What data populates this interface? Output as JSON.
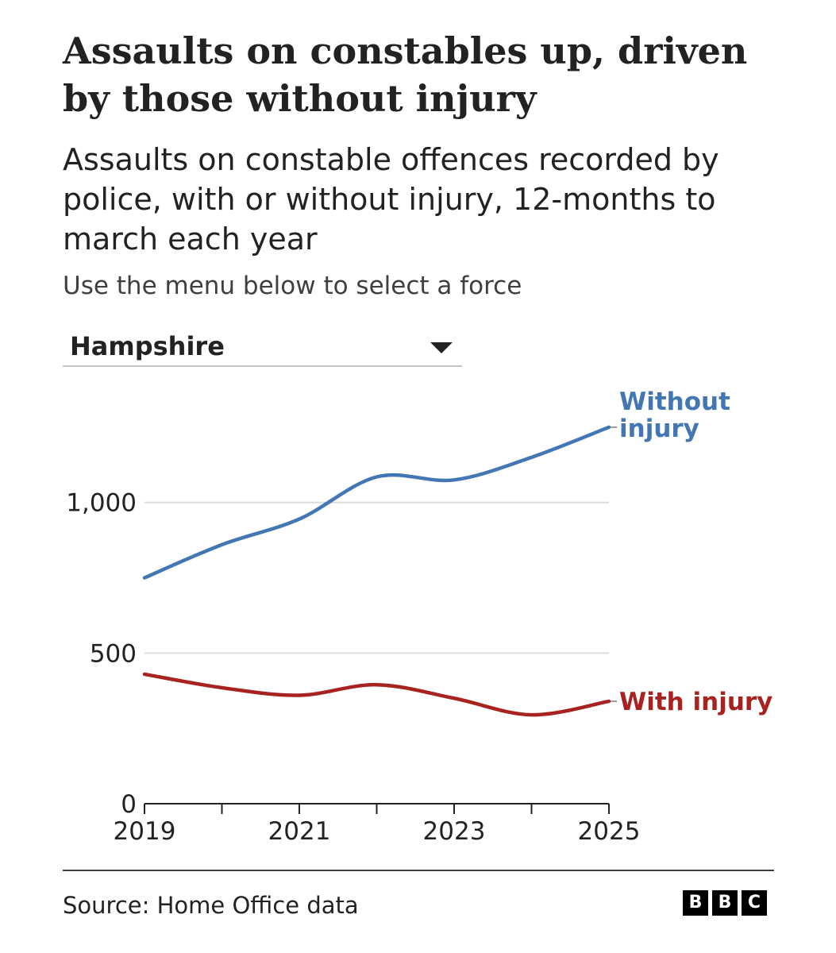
{
  "header": {
    "title": "Assaults on constables up, driven by those without injury",
    "subtitle": "Assaults on constable offences recorded by police, with or without injury, 12-months to march each year",
    "instruction": "Use the menu below to select a force"
  },
  "selector": {
    "selected": "Hampshire",
    "caret_icon": "caret-down-icon"
  },
  "chart_data": {
    "type": "line",
    "x": [
      2019,
      2020,
      2021,
      2022,
      2023,
      2024,
      2025
    ],
    "x_tick_labels": [
      "2019",
      "2021",
      "2023",
      "2025"
    ],
    "y_tick_labels": [
      "0",
      "500",
      "1,000"
    ],
    "y_ticks": [
      0,
      500,
      1000
    ],
    "xlim": [
      2019,
      2025
    ],
    "ylim": [
      0,
      1350
    ],
    "grid": "horizontal",
    "legend": "direct labels at line ends",
    "series": [
      {
        "name": "Without injury",
        "name_lines": [
          "Without",
          "injury"
        ],
        "color": "#4377b4",
        "values": [
          750,
          860,
          945,
          1085,
          1075,
          1150,
          1250
        ]
      },
      {
        "name": "With injury",
        "name_lines": [
          "With injury"
        ],
        "color": "#a8231f",
        "values": [
          430,
          385,
          360,
          395,
          350,
          295,
          340
        ]
      }
    ]
  },
  "footer": {
    "source": "Source: Home Office data",
    "logo_letters": [
      "B",
      "B",
      "C"
    ]
  }
}
